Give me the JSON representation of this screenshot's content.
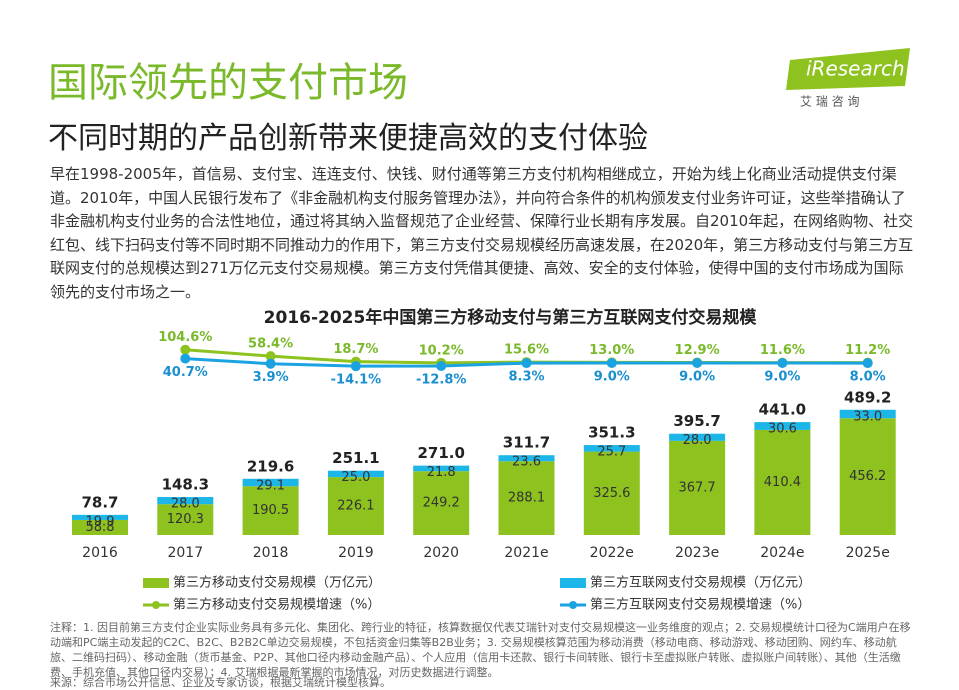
{
  "title": "国际领先的支付市场",
  "subtitle": "不同时期的产品创新带来便捷高效的支付体验",
  "logo": {
    "brand": "iResearch",
    "name": "艾 瑞 咨 询"
  },
  "paragraph": "早在1998-2005年，首信易、支付宝、连连支付、快钱、财付通等第三方支付机构相继成立，开始为线上化商业活动提供支付渠道。2010年，中国人民银行发布了《非金融机构支付服务管理办法》，并向符合条件的机构颁发支付业务许可证，这些举措确认了非金融机构支付业务的合法性地位，通过将其纳入监督规范了企业经营、保障行业长期有序发展。自2010年起，在网络购物、社交红包、线下扫码支付等不同时期不同推动力的作用下，第三方支付交易规模经历高速发展，在2020年，第三方移动支付与第三方互联网支付的总规模达到271万亿元支付交易规模。第三方支付凭借其便捷、高效、安全的支付体验，使得中国的支付市场成为国际领先的支付市场之一。",
  "chart_data": {
    "type": "bar",
    "title": "2016-2025年中国第三方移动支付与第三方互联网支付交易规模",
    "categories": [
      "2016",
      "2017",
      "2018",
      "2019",
      "2020",
      "2021e",
      "2022e",
      "2023e",
      "2024e",
      "2025e"
    ],
    "ylim": [
      0,
      500
    ],
    "y2lim": [
      -20,
      110
    ],
    "series": [
      {
        "name": "第三方移动支付交易规模（万亿元）",
        "type": "bar",
        "color": "#8dc21f",
        "values": [
          58.8,
          120.3,
          190.5,
          226.1,
          249.2,
          288.1,
          325.6,
          367.7,
          410.4,
          456.2
        ]
      },
      {
        "name": "第三方互联网支付交易规模（万亿元）",
        "type": "bar",
        "color": "#1cb6e8",
        "values": [
          19.9,
          28.0,
          29.1,
          25.0,
          21.8,
          23.6,
          25.7,
          28.0,
          30.6,
          33.0
        ],
        "value_labels": [
          "19.9",
          "28.0",
          "29.1",
          "25.0",
          "21.8",
          "23.6",
          "25.7",
          "28.0",
          "30.6",
          "33.0"
        ]
      },
      {
        "name": "第三方移动支付交易规模增速（%）",
        "type": "line",
        "axis": "y2",
        "color": "#8dc21f",
        "values": [
          null,
          104.6,
          58.4,
          18.7,
          10.2,
          15.6,
          13.0,
          12.9,
          11.6,
          11.2
        ],
        "value_labels": [
          null,
          "104.6%",
          "58.4%",
          "18.7%",
          "10.2%",
          "15.6%",
          "13.0%",
          "12.9%",
          "11.6%",
          "11.2%"
        ]
      },
      {
        "name": "第三方互联网支付交易规模增速（%）",
        "type": "line",
        "axis": "y2",
        "color": "#1aa3e0",
        "values": [
          null,
          40.7,
          3.9,
          -14.1,
          -12.8,
          8.3,
          9.0,
          9.0,
          9.0,
          8.0
        ],
        "value_labels": [
          null,
          "40.7%",
          "3.9%",
          "-14.1%",
          "-12.8%",
          "8.3%",
          "9.0%",
          "9.0%",
          "9.0%",
          "8.0%"
        ]
      }
    ],
    "totals": [
      78.7,
      148.3,
      219.6,
      251.1,
      271.0,
      311.7,
      351.3,
      395.7,
      441.0,
      489.2
    ],
    "total_labels": [
      "78.7",
      "148.3",
      "219.6",
      "251.1",
      "271.0",
      "311.7",
      "351.3",
      "395.7",
      "441.0",
      "489.2"
    ]
  },
  "notes": "注释：1. 因目前第三方支付企业实际业务具有多元化、集团化、跨行业的特征，核算数据仅代表艾瑞针对支付交易规模这一业务维度的观点；2. 交易规模统计口径为C端用户在移动端和PC端主动发起的C2C、B2C、B2B2C单边交易规模，不包括资金归集等B2B业务；3. 交易规模核算范围为移动消费（移动电商、移动游戏、移动团购、网约车、移动航旅、二维码扫码）、移动金融（货币基金、P2P、其他口径内移动金融产品）、个人应用（信用卡还款、银行卡间转账、银行卡至虚拟账户转账、虚拟账户间转账）、其他（生活缴费、手机充值、其他口径内交易）；4. 艾瑞根据最新掌握的市场情况，对历史数据进行调整。",
  "source": "来源：综合市场公开信息、企业及专家访谈，根据艾瑞统计模型核算。"
}
